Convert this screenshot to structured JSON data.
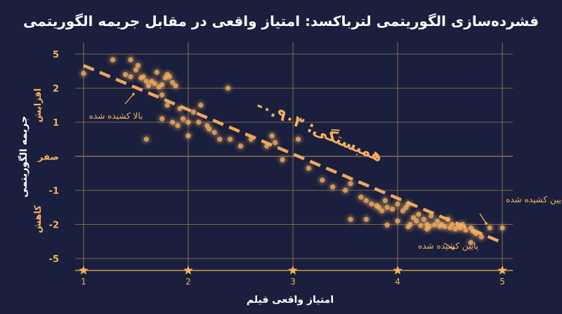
{
  "title": "فشرده‌سازی الگوریتمی لترباکسد: امتیاز واقعی در مقابل جریمه الگوریتمی",
  "colors": {
    "background": "#1a1f3d",
    "accent": "#f5b061",
    "grid": "#8a7150",
    "text": "#ffffff"
  },
  "chart_data": {
    "type": "scatter",
    "title": "فشرده‌سازی الگوریتمی لترباکسد: امتیاز واقعی در مقابل جریمه الگوریتمی",
    "xlabel": "امتیاز واقعی فیلم",
    "ylabel": "جریمه الگوریتمی",
    "xlim": [
      0.92,
      5.1
    ],
    "xticks": [
      1,
      2,
      3,
      4,
      5
    ],
    "xtick_labels": [
      "1",
      "2",
      "3",
      "4",
      "5"
    ],
    "ylim": [
      -5.5,
      5.5
    ],
    "yticks": [
      5,
      2,
      1,
      0,
      -1,
      -2,
      -5
    ],
    "ytick_labels": [
      "5",
      "2",
      "1",
      "صفر",
      "-1",
      "-2",
      "-5"
    ],
    "y_side_labels": {
      "top": "افزایش",
      "bottom": "کاهش"
    },
    "grid": true,
    "trend_line": {
      "x": [
        1,
        5
      ],
      "y": [
        4.0,
        -3.6
      ]
    },
    "correlation_label": "همبستگی: ۰.۹۰۳-",
    "annotations": [
      {
        "text": "بالا کشیده شده",
        "x": 1.45,
        "y": 1.0
      },
      {
        "text": "پایین کشیده شده",
        "x": 4.75,
        "y": -1.6
      },
      {
        "text": "پایین کشیده شده",
        "x": 4.4,
        "y": -3.0
      }
    ],
    "points": [
      [
        1.0,
        3.3
      ],
      [
        1.28,
        4.5
      ],
      [
        1.45,
        4.5
      ],
      [
        1.52,
        4.0
      ],
      [
        1.5,
        3.6
      ],
      [
        1.4,
        3.2
      ],
      [
        1.45,
        3.0
      ],
      [
        1.55,
        2.9
      ],
      [
        1.57,
        3.0
      ],
      [
        1.6,
        2.6
      ],
      [
        1.62,
        2.2
      ],
      [
        1.65,
        2.6
      ],
      [
        1.68,
        2.4
      ],
      [
        1.7,
        3.4
      ],
      [
        1.72,
        2.1
      ],
      [
        1.75,
        2.3
      ],
      [
        1.78,
        2.9
      ],
      [
        1.8,
        3.2
      ],
      [
        1.82,
        3.0
      ],
      [
        1.85,
        2.5
      ],
      [
        1.88,
        2.2
      ],
      [
        1.75,
        1.8
      ],
      [
        1.8,
        1.5
      ],
      [
        1.85,
        1.0
      ],
      [
        1.9,
        0.9
      ],
      [
        1.92,
        1.4
      ],
      [
        1.95,
        1.1
      ],
      [
        2.0,
        1.0
      ],
      [
        2.05,
        1.3
      ],
      [
        2.1,
        1.0
      ],
      [
        2.12,
        1.5
      ],
      [
        2.18,
        0.9
      ],
      [
        2.2,
        0.8
      ],
      [
        2.25,
        0.7
      ],
      [
        2.3,
        0.5
      ],
      [
        1.6,
        0.5
      ],
      [
        1.75,
        1.1
      ],
      [
        2.0,
        0.6
      ],
      [
        2.38,
        2.0
      ],
      [
        2.4,
        0.5
      ],
      [
        2.5,
        0.3
      ],
      [
        2.6,
        0.5
      ],
      [
        2.75,
        0.3
      ],
      [
        2.8,
        0.6
      ],
      [
        2.83,
        0.4
      ],
      [
        3.05,
        0.5
      ],
      [
        2.9,
        -0.1
      ],
      [
        3.15,
        -0.35
      ],
      [
        3.28,
        -0.7
      ],
      [
        3.38,
        -0.9
      ],
      [
        3.5,
        -1.0
      ],
      [
        3.55,
        -0.8
      ],
      [
        3.65,
        -1.2
      ],
      [
        3.7,
        -1.3
      ],
      [
        3.75,
        -1.4
      ],
      [
        3.8,
        -1.45
      ],
      [
        3.82,
        -1.5
      ],
      [
        3.85,
        -1.6
      ],
      [
        3.88,
        -1.3
      ],
      [
        3.9,
        -1.5
      ],
      [
        3.95,
        -1.55
      ],
      [
        4.0,
        -1.4
      ],
      [
        4.05,
        -1.6
      ],
      [
        4.08,
        -1.5
      ],
      [
        4.1,
        -1.4
      ],
      [
        3.7,
        -1.85
      ],
      [
        4.0,
        -1.9
      ],
      [
        4.12,
        -2.0
      ],
      [
        4.15,
        -1.8
      ],
      [
        4.18,
        -1.9
      ],
      [
        4.2,
        -1.7
      ],
      [
        4.22,
        -2.1
      ],
      [
        4.25,
        -1.85
      ],
      [
        4.28,
        -2.0
      ],
      [
        4.3,
        -2.2
      ],
      [
        4.32,
        -1.75
      ],
      [
        4.35,
        -2.05
      ],
      [
        4.38,
        -1.9
      ],
      [
        4.4,
        -2.15
      ],
      [
        4.42,
        -2.0
      ],
      [
        4.45,
        -2.2
      ],
      [
        4.48,
        -1.85
      ],
      [
        4.5,
        -2.3
      ],
      [
        4.52,
        -2.0
      ],
      [
        4.55,
        -2.4
      ],
      [
        4.58,
        -2.15
      ],
      [
        4.6,
        -2.3
      ],
      [
        4.62,
        -2.0
      ],
      [
        4.65,
        -2.5
      ],
      [
        4.7,
        -2.3
      ],
      [
        4.72,
        -2.6
      ],
      [
        4.75,
        -2.8
      ],
      [
        4.8,
        -3.1
      ],
      [
        4.88,
        -2.3
      ],
      [
        5.0,
        -2.3
      ],
      [
        3.55,
        -1.85
      ],
      [
        4.7,
        -3.6
      ],
      [
        3.9,
        -2.05
      ],
      [
        4.1,
        -2.2
      ],
      [
        4.28,
        -2.4
      ]
    ]
  }
}
